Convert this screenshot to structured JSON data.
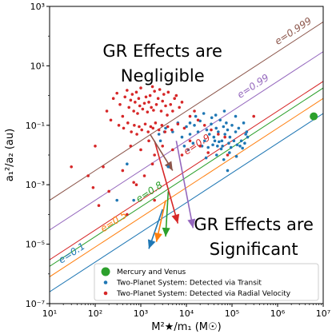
{
  "chart_data": {
    "type": "scatter",
    "x_scale": "log",
    "y_scale": "log",
    "xlim": [
      10,
      10000000
    ],
    "ylim": [
      1e-07,
      1000
    ],
    "xlabel": "M²★/m₁ (M☉)",
    "ylabel": "a₁²/a₂ (au)",
    "x_ticks": [
      {
        "value": 10,
        "label": "10¹"
      },
      {
        "value": 100,
        "label": "10²"
      },
      {
        "value": 1000,
        "label": "10³"
      },
      {
        "value": 10000,
        "label": "10⁴"
      },
      {
        "value": 100000,
        "label": "10⁵"
      },
      {
        "value": 1000000,
        "label": "10⁶"
      },
      {
        "value": 10000000,
        "label": "10⁷"
      }
    ],
    "y_ticks": [
      {
        "value": 1e-07,
        "label": "10⁻⁷"
      },
      {
        "value": 1e-05,
        "label": "10⁻⁵"
      },
      {
        "value": 0.001,
        "label": "10⁻³"
      },
      {
        "value": 0.1,
        "label": "10⁻¹"
      },
      {
        "value": 10,
        "label": "10¹"
      },
      {
        "value": 1000,
        "label": "10³"
      }
    ],
    "annotations": [
      {
        "lines": [
          "GR Effects are",
          "Negligible"
        ],
        "x": 3000,
        "y": 20
      },
      {
        "lines": [
          "GR Effects are",
          "Significant"
        ],
        "x": 300000,
        "y": 3e-05
      }
    ],
    "threshold_lines": [
      {
        "label": "e=0.999",
        "color": "#8c564b",
        "points": [
          [
            10,
            0.0003
          ],
          [
            10000000,
            300
          ]
        ],
        "label_at": [
          1000000,
          50
        ]
      },
      {
        "label": "e=0.99",
        "color": "#9467bd",
        "points": [
          [
            10,
            3e-05
          ],
          [
            10000000,
            30
          ]
        ],
        "label_at": [
          150000,
          0.8
        ]
      },
      {
        "label": "e=0.9",
        "color": "#d62728",
        "points": [
          [
            10,
            3e-06
          ],
          [
            10000000,
            3
          ]
        ],
        "label_at": [
          10000,
          0.01
        ]
      },
      {
        "label": "e=0.8",
        "color": "#2ca02c",
        "points": [
          [
            10,
            1.8e-06
          ],
          [
            10000000,
            1.8
          ]
        ],
        "label_at": [
          900,
          0.00025
        ]
      },
      {
        "label": "e=0.5",
        "color": "#ff7f0e",
        "points": [
          [
            10,
            8e-07
          ],
          [
            10000000,
            0.8
          ]
        ],
        "label_at": [
          150,
          2.5e-05
        ]
      },
      {
        "label": "e=0.1",
        "color": "#1f77b4",
        "points": [
          [
            10,
            2.5e-07
          ],
          [
            10000000,
            0.25
          ]
        ],
        "label_at": [
          18,
          2.2e-06
        ]
      }
    ],
    "arrows": [
      {
        "color": "#1f77b4",
        "from": [
          3000,
          0.00015
        ],
        "to": [
          1500,
          7e-06
        ]
      },
      {
        "color": "#ff7f0e",
        "from": [
          3500,
          0.0003
        ],
        "to": [
          2200,
          1.2e-05
        ]
      },
      {
        "color": "#2ca02c",
        "from": [
          4000,
          0.0006
        ],
        "to": [
          3500,
          1.8e-05
        ]
      },
      {
        "color": "#d62728",
        "from": [
          2000,
          0.03
        ],
        "to": [
          6500,
          5e-05
        ]
      },
      {
        "color": "#9467bd",
        "from": [
          6000,
          0.03
        ],
        "to": [
          14000,
          3.5e-05
        ]
      },
      {
        "color": "#8c564b",
        "from": [
          1600,
          0.05
        ],
        "to": [
          5000,
          0.003
        ]
      }
    ],
    "series": [
      {
        "name": "Mercury and Venus",
        "color": "#2ca02c",
        "marker_size": 5,
        "points": [
          [
            6200000,
            0.2
          ]
        ]
      },
      {
        "name": "Two-Planet System: Detected via Transit",
        "color": "#1f77b4",
        "marker_size": 1.8,
        "points": [
          [
            2500,
            0.05
          ],
          [
            3500,
            0.08
          ],
          [
            5000,
            0.06
          ],
          [
            6500,
            0.12
          ],
          [
            8000,
            0.04
          ],
          [
            10000,
            0.09
          ],
          [
            12000,
            0.05
          ],
          [
            15000,
            0.1
          ],
          [
            18000,
            0.06
          ],
          [
            20000,
            0.14
          ],
          [
            25000,
            0.03
          ],
          [
            28000,
            0.07
          ],
          [
            32000,
            0.05
          ],
          [
            35000,
            0.11
          ],
          [
            40000,
            0.04
          ],
          [
            45000,
            0.08
          ],
          [
            50000,
            0.06
          ],
          [
            55000,
            0.15
          ],
          [
            60000,
            0.03
          ],
          [
            65000,
            0.09
          ],
          [
            70000,
            0.05
          ],
          [
            75000,
            0.12
          ],
          [
            80000,
            0.07
          ],
          [
            90000,
            0.04
          ],
          [
            100000,
            0.1
          ],
          [
            120000,
            0.06
          ],
          [
            140000,
            0.08
          ],
          [
            160000,
            0.03
          ],
          [
            180000,
            0.12
          ],
          [
            200000,
            0.05
          ],
          [
            220000,
            0.04
          ],
          [
            9000,
            0.02
          ],
          [
            11000,
            0.015
          ],
          [
            14000,
            0.025
          ],
          [
            22000,
            0.02
          ],
          [
            30000,
            0.018
          ],
          [
            38000,
            0.022
          ],
          [
            42000,
            0.03
          ],
          [
            48000,
            0.02
          ],
          [
            52000,
            0.028
          ],
          [
            58000,
            0.016
          ],
          [
            62000,
            0.02
          ],
          [
            85000,
            0.025
          ],
          [
            95000,
            0.018
          ],
          [
            110000,
            0.03
          ],
          [
            130000,
            0.022
          ],
          [
            150000,
            0.02
          ],
          [
            170000,
            0.017
          ],
          [
            190000,
            0.025
          ],
          [
            16000,
            0.2
          ],
          [
            24000,
            0.25
          ],
          [
            36000,
            0.18
          ],
          [
            44000,
            0.22
          ],
          [
            68000,
            0.3
          ],
          [
            120000,
            0.2
          ],
          [
            27000,
            0.008
          ],
          [
            46000,
            0.01
          ],
          [
            66000,
            0.007
          ],
          [
            88000,
            0.012
          ],
          [
            125000,
            0.009
          ],
          [
            2700,
            0.03
          ],
          [
            3300,
            0.06
          ],
          [
            12000,
            0.12
          ],
          [
            80000,
            0.003
          ],
          [
            210000,
            0.06
          ],
          [
            300,
            0.0003
          ],
          [
            500,
            0.005
          ],
          [
            700,
            0.0003
          ],
          [
            4000,
            0.004
          ]
        ]
      },
      {
        "name": "Two-Planet System: Detected via Radial Velocity",
        "color": "#d62728",
        "marker_size": 1.8,
        "points": [
          [
            180,
            0.3
          ],
          [
            250,
            0.8
          ],
          [
            300,
            1.2
          ],
          [
            350,
            0.5
          ],
          [
            400,
            0.2
          ],
          [
            450,
            0.9
          ],
          [
            500,
            1.5
          ],
          [
            550,
            0.4
          ],
          [
            600,
            0.7
          ],
          [
            650,
            1.1
          ],
          [
            700,
            0.3
          ],
          [
            750,
            0.6
          ],
          [
            800,
            1.3
          ],
          [
            850,
            0.25
          ],
          [
            900,
            0.8
          ],
          [
            950,
            0.45
          ],
          [
            1000,
            1.8
          ],
          [
            1100,
            0.35
          ],
          [
            1200,
            0.55
          ],
          [
            1300,
            0.9
          ],
          [
            1400,
            0.28
          ],
          [
            1500,
            0.6
          ],
          [
            1600,
            1.0
          ],
          [
            1700,
            0.4
          ],
          [
            1800,
            2.0
          ],
          [
            1900,
            0.32
          ],
          [
            2000,
            1.4
          ],
          [
            2200,
            0.5
          ],
          [
            2400,
            0.8
          ],
          [
            2600,
            1.6
          ],
          [
            2800,
            0.3
          ],
          [
            3000,
            0.65
          ],
          [
            3200,
            1.1
          ],
          [
            3500,
            0.45
          ],
          [
            3800,
            0.22
          ],
          [
            4000,
            1.3
          ],
          [
            4500,
            0.5
          ],
          [
            5000,
            0.3
          ],
          [
            5500,
            0.8
          ],
          [
            6000,
            1.0
          ],
          [
            7000,
            0.4
          ],
          [
            8000,
            0.6
          ],
          [
            220,
            0.15
          ],
          [
            330,
            0.1
          ],
          [
            420,
            0.08
          ],
          [
            520,
            0.12
          ],
          [
            620,
            0.06
          ],
          [
            720,
            0.1
          ],
          [
            820,
            0.05
          ],
          [
            920,
            0.09
          ],
          [
            1050,
            0.07
          ],
          [
            1250,
            0.11
          ],
          [
            1450,
            0.06
          ],
          [
            1650,
            0.09
          ],
          [
            1850,
            0.08
          ],
          [
            2100,
            0.12
          ],
          [
            2500,
            0.07
          ],
          [
            2900,
            0.1
          ],
          [
            3400,
            0.06
          ],
          [
            3900,
            0.09
          ],
          [
            4800,
            0.07
          ],
          [
            6500,
            0.11
          ],
          [
            9000,
            0.08
          ],
          [
            12000,
            0.2
          ],
          [
            15000,
            0.3
          ],
          [
            18000,
            0.15
          ],
          [
            25000,
            0.1
          ],
          [
            35000,
            0.07
          ],
          [
            50000,
            0.05
          ],
          [
            70000,
            0.04
          ],
          [
            600,
            0.02
          ],
          [
            1000,
            0.015
          ],
          [
            1500,
            0.03
          ],
          [
            2000,
            0.01
          ],
          [
            3000,
            0.02
          ],
          [
            5000,
            0.015
          ],
          [
            8000,
            0.01
          ],
          [
            12000,
            0.03
          ],
          [
            20000,
            0.02
          ],
          [
            30000,
            0.012
          ],
          [
            100,
            0.02
          ],
          [
            150,
            0.004
          ],
          [
            70,
            0.002
          ],
          [
            90,
            0.0008
          ],
          [
            200,
            0.0006
          ],
          [
            120,
            0.0002
          ],
          [
            400,
            0.003
          ],
          [
            800,
            0.001
          ],
          [
            1200,
            0.002
          ],
          [
            80000,
            0.01
          ],
          [
            300000,
            0.2
          ],
          [
            2000,
            0.0003
          ],
          [
            30,
            0.004
          ],
          [
            500,
            0.0001
          ],
          [
            700,
            0.0012
          ],
          [
            1800,
            0.005
          ]
        ]
      }
    ],
    "legend": {
      "placement": "lower-right"
    }
  }
}
